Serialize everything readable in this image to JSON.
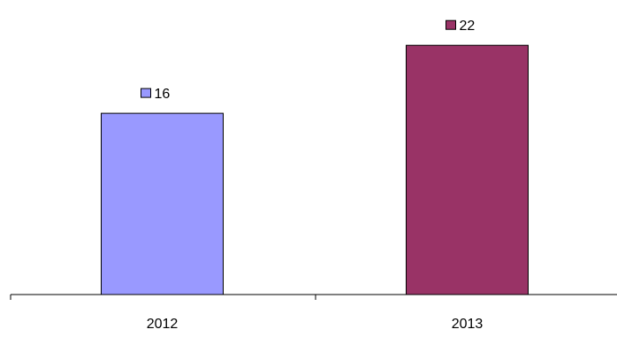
{
  "chart_data": {
    "type": "bar",
    "categories": [
      "2012",
      "2013"
    ],
    "values": [
      16,
      22
    ],
    "colors": [
      "#9999ff",
      "#993366"
    ],
    "ylim": [
      0,
      26
    ],
    "grid": false,
    "legend": "none",
    "data_labels": [
      "16",
      "22"
    ]
  }
}
